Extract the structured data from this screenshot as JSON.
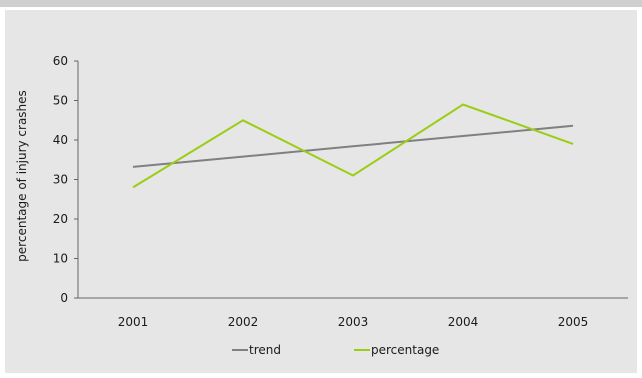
{
  "chart_data": {
    "type": "line",
    "categories": [
      "2001",
      "2002",
      "2003",
      "2004",
      "2005"
    ],
    "series": [
      {
        "name": "trend",
        "values": [
          33.2,
          35.8,
          38.4,
          41.0,
          43.6
        ],
        "color": "#808080"
      },
      {
        "name": "percentage",
        "values": [
          28,
          45,
          31,
          49,
          39
        ],
        "color": "#9acd14"
      }
    ],
    "title": "",
    "xlabel": "",
    "ylabel": "percentage of injury crashes",
    "ylim": [
      0,
      60
    ],
    "yticks": [
      "0",
      "10",
      "20",
      "30",
      "40",
      "50",
      "60"
    ],
    "grid": false,
    "legend_position": "bottom"
  }
}
